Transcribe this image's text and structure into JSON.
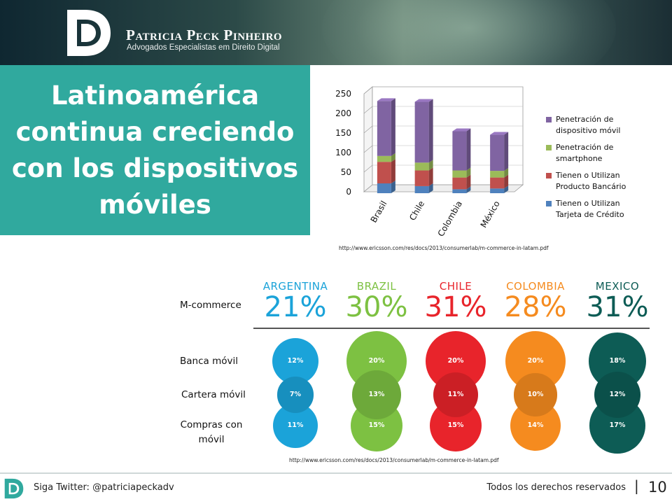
{
  "header": {
    "brand_name": "Patricia Peck Pinheiro",
    "brand_subtitle": "Advogados Especialistas em Direito Digital"
  },
  "title": "Latinoamérica continua creciendo con los dispositivos móviles",
  "chart_data": [
    {
      "type": "bar",
      "stacked": true,
      "three_d": true,
      "categories": [
        "Brasil",
        "Chile",
        "Colombia",
        "México"
      ],
      "ylim": [
        0,
        250
      ],
      "yticks": [
        0,
        50,
        100,
        150,
        200,
        250
      ],
      "series": [
        {
          "name": "Tienen o Utilizan Tarjeta de Crédito",
          "color": "#4f81bd",
          "values": [
            25,
            18,
            10,
            12
          ]
        },
        {
          "name": "Tienen o Utilizan Producto Bancário",
          "color": "#c0504d",
          "values": [
            55,
            40,
            30,
            28
          ]
        },
        {
          "name": "Penetración de smartphone",
          "color": "#9bbb59",
          "values": [
            15,
            20,
            18,
            17
          ]
        },
        {
          "name": "Penetración de dispositivo móvil",
          "color": "#8064a2",
          "values": [
            140,
            155,
            100,
            92
          ]
        }
      ],
      "legend_position": "right",
      "source": "http://www.ericsson.com/res/docs/2013/consumerlab/m-commerce-in-latam.pdf"
    },
    {
      "type": "table",
      "countries": [
        {
          "name": "ARGENTINA",
          "color": "#1ba3d9",
          "mcommerce": "21%",
          "banca": "12%",
          "cartera": "7%",
          "compras": "11%",
          "banca_v": 12,
          "cartera_v": 7,
          "compras_v": 11
        },
        {
          "name": "BRAZIL",
          "color": "#7dc142",
          "mcommerce": "30%",
          "banca": "20%",
          "cartera": "13%",
          "compras": "15%",
          "banca_v": 20,
          "cartera_v": 13,
          "compras_v": 15
        },
        {
          "name": "CHILE",
          "color": "#e8242b",
          "mcommerce": "31%",
          "banca": "20%",
          "cartera": "11%",
          "compras": "15%",
          "banca_v": 20,
          "cartera_v": 11,
          "compras_v": 15
        },
        {
          "name": "COLOMBIA",
          "color": "#f58b1f",
          "mcommerce": "28%",
          "banca": "20%",
          "cartera": "10%",
          "compras": "14%",
          "banca_v": 20,
          "cartera_v": 10,
          "compras_v": 14
        },
        {
          "name": "MEXICO",
          "color": "#0d5c55",
          "mcommerce": "31%",
          "banca": "18%",
          "cartera": "12%",
          "compras": "17%",
          "banca_v": 18,
          "cartera_v": 12,
          "compras_v": 17
        }
      ],
      "row_labels": {
        "mcommerce": "M-commerce",
        "banca": "Banca móvil",
        "cartera": "Cartera móvil",
        "compras": "Compras con móvil"
      },
      "source": "http://www.ericsson.com/res/docs/2013/consumerlab/m-commerce-in-latam.pdf"
    }
  ],
  "footer": {
    "twitter": "Siga Twitter: @patriciapeckadv",
    "rights": "Todos los derechos reservados",
    "separator": "|",
    "page": "10"
  }
}
